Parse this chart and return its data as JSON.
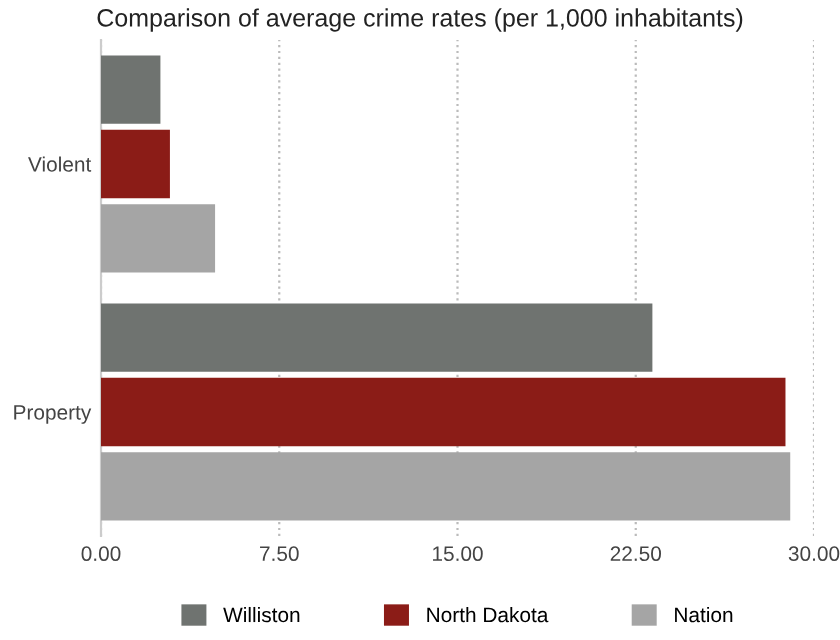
{
  "chart_data": {
    "type": "bar",
    "orientation": "horizontal",
    "title": "Comparison of average crime rates (per 1,000 inhabitants)",
    "categories": [
      "Violent",
      "Property"
    ],
    "series": [
      {
        "name": "Williston",
        "color": "#6f7370",
        "values": [
          2.5,
          23.2
        ]
      },
      {
        "name": "North Dakota",
        "color": "#8b1c17",
        "values": [
          2.9,
          28.8
        ]
      },
      {
        "name": "Nation",
        "color": "#a5a5a5",
        "values": [
          4.8,
          29.0
        ]
      }
    ],
    "xlim": [
      0,
      30
    ],
    "xticks": [
      {
        "value": 0,
        "label": "0.00"
      },
      {
        "value": 7.5,
        "label": "7.50"
      },
      {
        "value": 15,
        "label": "15.00"
      },
      {
        "value": 22.5,
        "label": "22.50"
      },
      {
        "value": 30,
        "label": "30.00"
      }
    ],
    "grid": "x",
    "legend": "bottom"
  }
}
